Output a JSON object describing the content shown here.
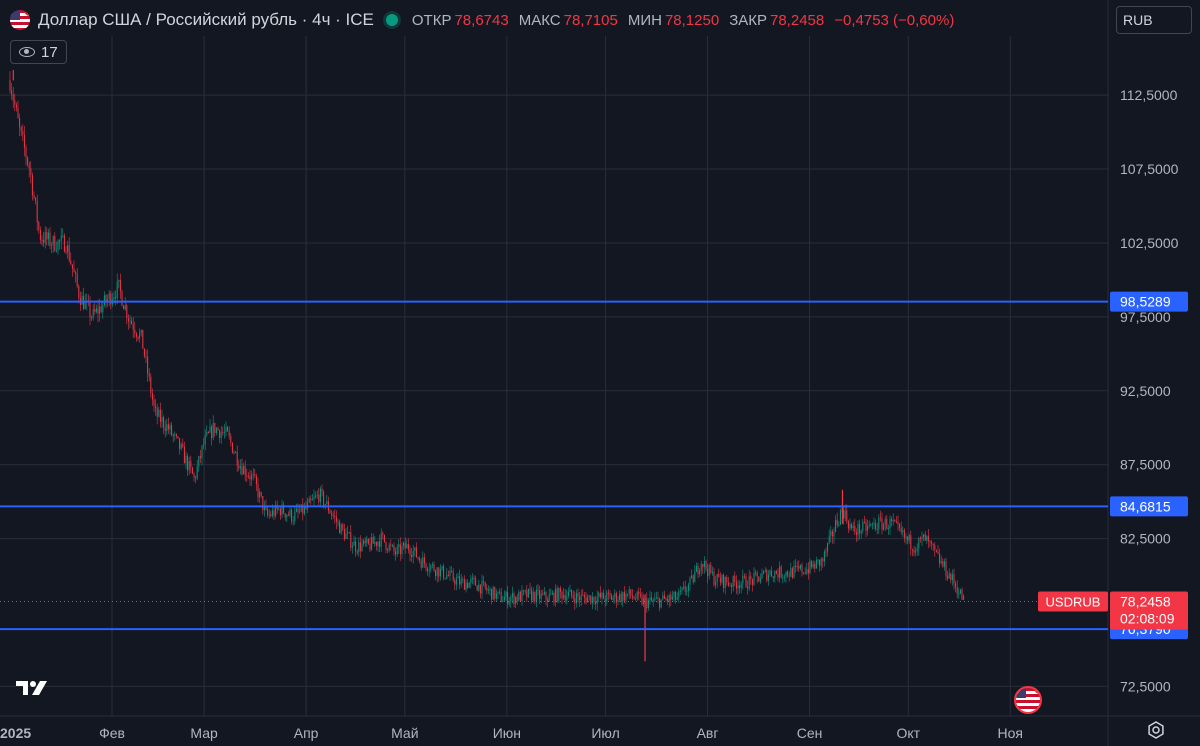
{
  "header": {
    "title": "Доллар США / Российский рубль · 4ч · ICE",
    "open_label": "ОТКР",
    "open": "78,6743",
    "high_label": "МАКС",
    "high": "78,7105",
    "low_label": "МИН",
    "low": "78,1250",
    "close_label": "ЗАКР",
    "close": "78,2458",
    "change": "−0,4753 (−0,60%)"
  },
  "indicators_button": {
    "count": "17"
  },
  "currency_selector": {
    "value": "RUB"
  },
  "colors": {
    "background": "#131722",
    "up": "#089981",
    "down": "#f23645",
    "level_line": "#2962ff",
    "grid": "#2a2e39"
  },
  "chart_data": {
    "type": "candlestick",
    "symbol": "USDRUB",
    "y_ticks": [
      "112,5000",
      "107,5000",
      "102,5000",
      "97,5000",
      "92,5000",
      "87,5000",
      "82,5000",
      "72,5000"
    ],
    "y_tick_values": [
      112.5,
      107.5,
      102.5,
      97.5,
      92.5,
      87.5,
      82.5,
      72.5
    ],
    "ylim": [
      70.5,
      116.5
    ],
    "x_ticks": [
      "2025",
      "Фев",
      "Мар",
      "Апр",
      "Май",
      "Июн",
      "Июл",
      "Авг",
      "Сен",
      "Окт",
      "Ноя"
    ],
    "x_tick_dates": [
      "2025-01-01",
      "2025-02-01",
      "2025-03-01",
      "2025-04-01",
      "2025-05-01",
      "2025-06-01",
      "2025-07-01",
      "2025-08-01",
      "2025-09-01",
      "2025-10-01",
      "2025-11-01"
    ],
    "horizontal_levels": [
      {
        "value": 98.5289,
        "label": "98,5289"
      },
      {
        "value": 84.6815,
        "label": "84,6815"
      },
      {
        "value": 76.379,
        "label": "76,3790"
      }
    ],
    "last_price": {
      "symbol": "USDRUB",
      "value": 78.2458,
      "label": "78,2458",
      "countdown": "02:08:09"
    },
    "price_path": [
      [
        "2025-01-01",
        113.5
      ],
      [
        "2025-01-04",
        110.0
      ],
      [
        "2025-01-07",
        107.5
      ],
      [
        "2025-01-10",
        103.0
      ],
      [
        "2025-01-14",
        102.5
      ],
      [
        "2025-01-18",
        102.5
      ],
      [
        "2025-01-22",
        99.0
      ],
      [
        "2025-01-26",
        97.5
      ],
      [
        "2025-01-30",
        98.5
      ],
      [
        "2025-02-03",
        99.5
      ],
      [
        "2025-02-06",
        97.5
      ],
      [
        "2025-02-10",
        96.0
      ],
      [
        "2025-02-14",
        91.0
      ],
      [
        "2025-02-18",
        90.0
      ],
      [
        "2025-02-22",
        88.5
      ],
      [
        "2025-02-26",
        86.5
      ],
      [
        "2025-03-01",
        89.0
      ],
      [
        "2025-03-04",
        90.0
      ],
      [
        "2025-03-08",
        89.5
      ],
      [
        "2025-03-12",
        87.5
      ],
      [
        "2025-03-16",
        86.5
      ],
      [
        "2025-03-20",
        84.0
      ],
      [
        "2025-03-24",
        84.5
      ],
      [
        "2025-03-28",
        84.0
      ],
      [
        "2025-04-01",
        84.5
      ],
      [
        "2025-04-05",
        85.5
      ],
      [
        "2025-04-08",
        84.5
      ],
      [
        "2025-04-12",
        83.0
      ],
      [
        "2025-04-16",
        82.0
      ],
      [
        "2025-04-20",
        82.0
      ],
      [
        "2025-04-24",
        82.5
      ],
      [
        "2025-04-28",
        81.5
      ],
      [
        "2025-05-02",
        82.0
      ],
      [
        "2025-05-06",
        81.0
      ],
      [
        "2025-05-10",
        80.5
      ],
      [
        "2025-05-14",
        80.0
      ],
      [
        "2025-05-18",
        79.5
      ],
      [
        "2025-05-22",
        79.5
      ],
      [
        "2025-05-26",
        79.0
      ],
      [
        "2025-05-30",
        78.5
      ],
      [
        "2025-06-03",
        78.5
      ],
      [
        "2025-06-08",
        78.7
      ],
      [
        "2025-06-13",
        78.5
      ],
      [
        "2025-06-18",
        78.8
      ],
      [
        "2025-06-23",
        78.5
      ],
      [
        "2025-06-28",
        78.5
      ],
      [
        "2025-07-03",
        78.5
      ],
      [
        "2025-07-08",
        78.7
      ],
      [
        "2025-07-13",
        78.2
      ],
      [
        "2025-07-18",
        78.3
      ],
      [
        "2025-07-23",
        78.5
      ],
      [
        "2025-07-27",
        79.5
      ],
      [
        "2025-07-30",
        81.0
      ],
      [
        "2025-08-03",
        79.8
      ],
      [
        "2025-08-08",
        79.5
      ],
      [
        "2025-08-14",
        79.6
      ],
      [
        "2025-08-20",
        80.2
      ],
      [
        "2025-08-26",
        80.2
      ],
      [
        "2025-09-01",
        80.5
      ],
      [
        "2025-09-05",
        81.0
      ],
      [
        "2025-09-09",
        83.5
      ],
      [
        "2025-09-11",
        84.5
      ],
      [
        "2025-09-14",
        83.0
      ],
      [
        "2025-09-18",
        83.2
      ],
      [
        "2025-09-22",
        83.5
      ],
      [
        "2025-09-26",
        83.5
      ],
      [
        "2025-09-30",
        82.5
      ],
      [
        "2025-10-03",
        82.0
      ],
      [
        "2025-10-06",
        82.5
      ],
      [
        "2025-10-09",
        81.5
      ],
      [
        "2025-10-12",
        80.5
      ],
      [
        "2025-10-15",
        79.5
      ],
      [
        "2025-10-18",
        78.25
      ]
    ],
    "wicks": [
      {
        "date": "2025-07-13",
        "low": 74.2
      },
      {
        "date": "2025-01-02",
        "high": 114.2
      },
      {
        "date": "2025-09-11",
        "high": 85.8
      }
    ]
  }
}
